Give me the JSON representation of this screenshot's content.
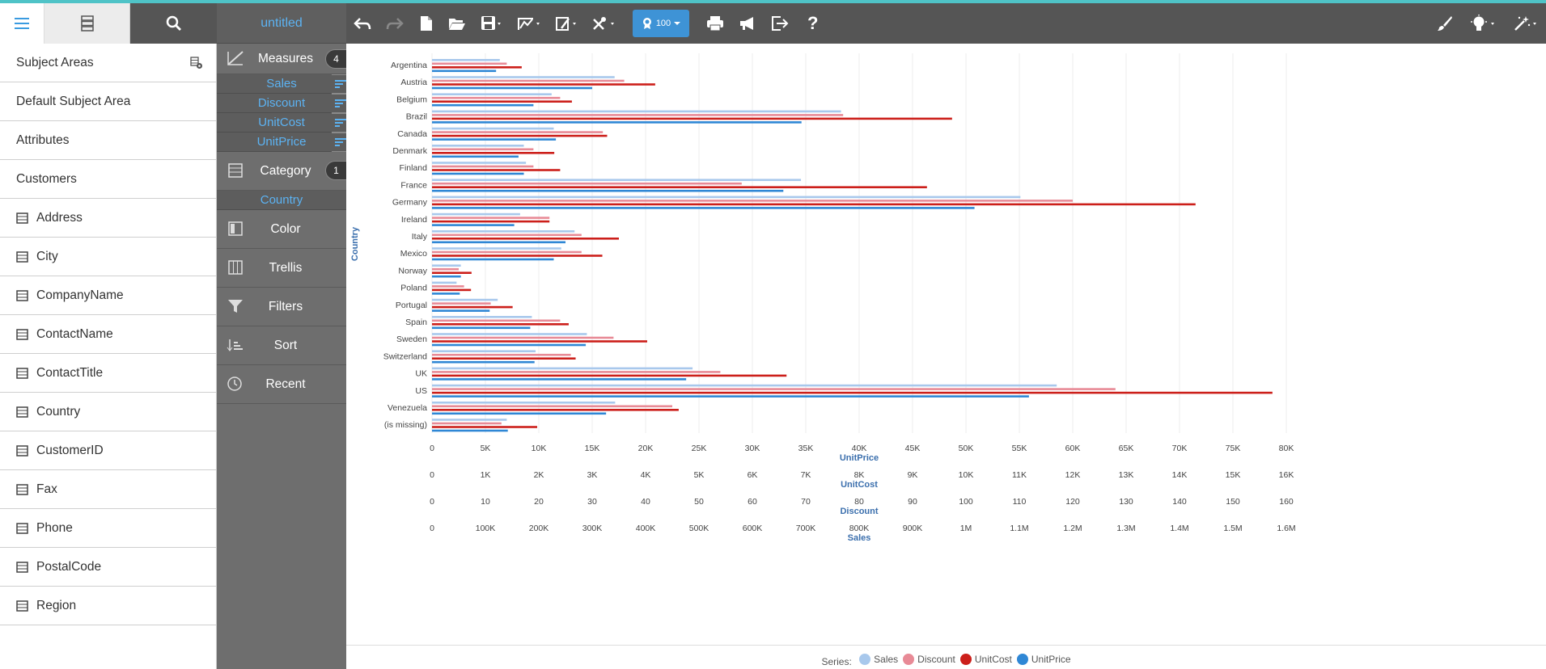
{
  "window": {
    "title": "untitled"
  },
  "left_panel": {
    "items": [
      {
        "label": "Subject Areas",
        "icon": "none"
      },
      {
        "label": "Default Subject Area",
        "icon": "none"
      },
      {
        "label": "Attributes",
        "icon": "none"
      },
      {
        "label": "Customers",
        "icon": "none"
      },
      {
        "label": "Address",
        "icon": "field-icon"
      },
      {
        "label": "City",
        "icon": "field-icon"
      },
      {
        "label": "CompanyName",
        "icon": "field-icon"
      },
      {
        "label": "ContactName",
        "icon": "field-icon"
      },
      {
        "label": "ContactTitle",
        "icon": "field-icon"
      },
      {
        "label": "Country",
        "icon": "field-icon"
      },
      {
        "label": "CustomerID",
        "icon": "field-icon"
      },
      {
        "label": "Fax",
        "icon": "field-icon"
      },
      {
        "label": "Phone",
        "icon": "field-icon"
      },
      {
        "label": "PostalCode",
        "icon": "field-icon"
      },
      {
        "label": "Region",
        "icon": "field-icon"
      }
    ]
  },
  "mid_panel": {
    "measures": {
      "label": "Measures",
      "count": "4",
      "items": [
        "Sales",
        "Discount",
        "UnitCost",
        "UnitPrice"
      ]
    },
    "category": {
      "label": "Category",
      "count": "1",
      "items": [
        "Country"
      ]
    },
    "color": {
      "label": "Color"
    },
    "trellis": {
      "label": "Trellis"
    },
    "filters": {
      "label": "Filters"
    },
    "sort": {
      "label": "Sort"
    },
    "recent": {
      "label": "Recent"
    }
  },
  "toolbar": {
    "zoom": "100"
  },
  "colors": {
    "Sales": "#a8c8ec",
    "Discount": "#e88a96",
    "UnitCost": "#cc1f1a",
    "UnitPrice": "#2f87d5",
    "accent": "#5cb3f3"
  },
  "chart_data": {
    "type": "bar",
    "orientation": "horizontal",
    "ylabel": "Country",
    "categories": [
      "Argentina",
      "Austria",
      "Belgium",
      "Brazil",
      "Canada",
      "Denmark",
      "Finland",
      "France",
      "Germany",
      "Ireland",
      "Italy",
      "Mexico",
      "Norway",
      "Poland",
      "Portugal",
      "Spain",
      "Sweden",
      "Switzerland",
      "UK",
      "US",
      "Venezuela",
      "(is missing)"
    ],
    "series": [
      {
        "name": "Sales",
        "axis": "Sales",
        "values": [
          127000,
          342000,
          224000,
          766000,
          228000,
          172000,
          176000,
          691000,
          1102000,
          165000,
          267000,
          242000,
          54000,
          46000,
          123000,
          187000,
          290000,
          194000,
          488000,
          1170000,
          343000,
          140000
        ]
      },
      {
        "name": "Discount",
        "axis": "Discount",
        "values": [
          14,
          36,
          24,
          77,
          32,
          19,
          19,
          58,
          120,
          22,
          28,
          28,
          5,
          6,
          11,
          24,
          34,
          26,
          54,
          128,
          45,
          13
        ]
      },
      {
        "name": "UnitCost",
        "axis": "UnitCost",
        "values": [
          1680,
          4180,
          2620,
          9740,
          3280,
          2290,
          2400,
          9270,
          14300,
          2200,
          3500,
          3190,
          740,
          730,
          1510,
          2560,
          4030,
          2690,
          6640,
          15740,
          4620,
          1970
        ]
      },
      {
        "name": "UnitPrice",
        "axis": "UnitPrice",
        "values": [
          6000,
          15000,
          9500,
          34600,
          11600,
          8100,
          8600,
          32900,
          50800,
          7700,
          12500,
          11400,
          2700,
          2600,
          5400,
          9200,
          14400,
          9600,
          23800,
          55900,
          16300,
          7100
        ]
      }
    ],
    "axes": [
      {
        "name": "UnitPrice",
        "ticks": [
          "0",
          "5K",
          "10K",
          "15K",
          "20K",
          "25K",
          "30K",
          "35K",
          "40K",
          "45K",
          "50K",
          "55K",
          "60K",
          "65K",
          "70K",
          "75K",
          "80K"
        ],
        "max": 80000
      },
      {
        "name": "UnitCost",
        "ticks": [
          "0",
          "1K",
          "2K",
          "3K",
          "4K",
          "5K",
          "6K",
          "7K",
          "8K",
          "9K",
          "10K",
          "11K",
          "12K",
          "13K",
          "14K",
          "15K",
          "16K"
        ],
        "max": 16000
      },
      {
        "name": "Discount",
        "ticks": [
          "0",
          "10",
          "20",
          "30",
          "40",
          "50",
          "60",
          "70",
          "80",
          "90",
          "100",
          "110",
          "120",
          "130",
          "140",
          "150",
          "160"
        ],
        "max": 160
      },
      {
        "name": "Sales",
        "ticks": [
          "0",
          "100K",
          "200K",
          "300K",
          "400K",
          "500K",
          "600K",
          "700K",
          "800K",
          "900K",
          "1M",
          "1.1M",
          "1.2M",
          "1.3M",
          "1.4M",
          "1.5M",
          "1.6M"
        ],
        "max": 1600000
      }
    ],
    "legend": {
      "title": "Series:",
      "position": "bottom-center",
      "entries": [
        "Sales",
        "Discount",
        "UnitCost",
        "UnitPrice"
      ]
    },
    "grid": true
  }
}
